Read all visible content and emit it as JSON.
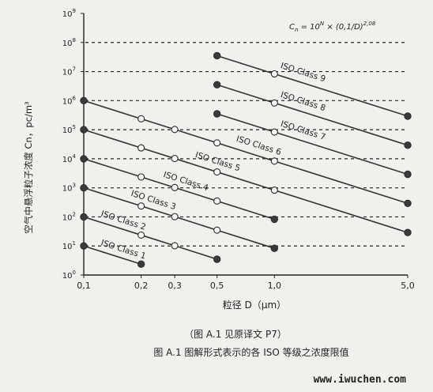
{
  "chart_data": {
    "type": "line",
    "x_scale": "log",
    "y_scale": "log",
    "xlim": [
      0.1,
      5.0
    ],
    "ylim": [
      1,
      1000000000
    ],
    "x_ticks": [
      0.1,
      0.2,
      0.3,
      0.5,
      1.0,
      5.0
    ],
    "x_tick_labels": [
      "0,1",
      "0,2",
      "0,3",
      "0,5",
      "1,0",
      "5,0"
    ],
    "y_ticks": [
      1,
      10,
      100,
      1000,
      10000,
      100000,
      1000000,
      10000000,
      100000000,
      1000000000
    ],
    "y_tick_base": "10",
    "y_tick_exponents": [
      "0",
      "1",
      "2",
      "3",
      "4",
      "5",
      "6",
      "7",
      "8",
      "9"
    ],
    "grid": "horizontal dashed",
    "xlabel": "粒径 D（μm）",
    "ylabel": "空气中悬浮粒子浓度 Cn，pc/m³",
    "formula": "Cn = 10^N × (0,1/D)^2,08",
    "series": [
      {
        "name": "ISO Class 1",
        "N": 1,
        "points": [
          [
            0.1,
            10
          ],
          [
            0.2,
            2.37
          ]
        ],
        "markers": [
          "filled",
          "filled"
        ]
      },
      {
        "name": "ISO Class 2",
        "N": 2,
        "points": [
          [
            0.1,
            100
          ],
          [
            0.2,
            23.7
          ],
          [
            0.3,
            10.2
          ],
          [
            0.5,
            3.5
          ]
        ],
        "markers": [
          "filled",
          "open",
          "open",
          "filled"
        ]
      },
      {
        "name": "ISO Class 3",
        "N": 3,
        "points": [
          [
            0.1,
            1000
          ],
          [
            0.2,
            237
          ],
          [
            0.3,
            102
          ],
          [
            0.5,
            35
          ],
          [
            1.0,
            8.3
          ]
        ],
        "markers": [
          "filled",
          "open",
          "open",
          "open",
          "filled"
        ]
      },
      {
        "name": "ISO Class 4",
        "N": 4,
        "points": [
          [
            0.1,
            10000
          ],
          [
            0.2,
            2370
          ],
          [
            0.3,
            1020
          ],
          [
            0.5,
            352
          ],
          [
            1.0,
            83
          ]
        ],
        "markers": [
          "filled",
          "open",
          "open",
          "open",
          "filled"
        ]
      },
      {
        "name": "ISO Class 5",
        "N": 5,
        "points": [
          [
            0.1,
            100000
          ],
          [
            0.2,
            23700
          ],
          [
            0.3,
            10200
          ],
          [
            0.5,
            3520
          ],
          [
            1.0,
            832
          ],
          [
            5.0,
            29
          ]
        ],
        "markers": [
          "filled",
          "open",
          "open",
          "open",
          "open",
          "filled"
        ]
      },
      {
        "name": "ISO Class 6",
        "N": 6,
        "points": [
          [
            0.1,
            1000000
          ],
          [
            0.2,
            237000
          ],
          [
            0.3,
            102000
          ],
          [
            0.5,
            35200
          ],
          [
            1.0,
            8320
          ],
          [
            5.0,
            293
          ]
        ],
        "markers": [
          "filled",
          "open",
          "open",
          "open",
          "open",
          "filled"
        ]
      },
      {
        "name": "ISO Class 7",
        "N": 7,
        "points": [
          [
            0.5,
            352000
          ],
          [
            1.0,
            83200
          ],
          [
            5.0,
            2930
          ]
        ],
        "markers": [
          "filled",
          "open",
          "filled"
        ]
      },
      {
        "name": "ISO Class 8",
        "N": 8,
        "points": [
          [
            0.5,
            3520000
          ],
          [
            1.0,
            832000
          ],
          [
            5.0,
            29300
          ]
        ],
        "markers": [
          "filled",
          "open",
          "filled"
        ]
      },
      {
        "name": "ISO Class 9",
        "N": 9,
        "points": [
          [
            0.5,
            35200000
          ],
          [
            1.0,
            8320000
          ],
          [
            5.0,
            293000
          ]
        ],
        "markers": [
          "filled",
          "open",
          "filled"
        ]
      }
    ]
  },
  "captions": {
    "line1": "（图 A.1 见原译文 P7）",
    "line2": "图 A.1  图解形式表示的各 ISO 等级之浓度限值"
  },
  "watermark": "www.iwuchen.com"
}
